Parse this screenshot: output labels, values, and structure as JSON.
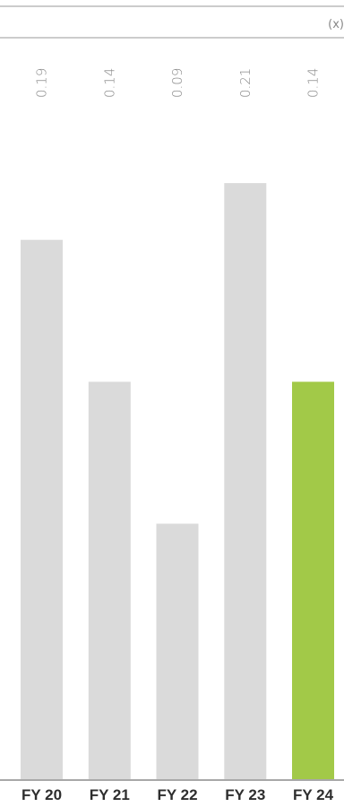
{
  "chart_data": {
    "type": "bar",
    "unit_label": "(x)",
    "categories": [
      "FY 20",
      "FY 21",
      "FY 22",
      "FY 23",
      "FY 24"
    ],
    "values": [
      0.19,
      0.14,
      0.09,
      0.21,
      0.14
    ],
    "value_labels": [
      "0.19",
      "0.14",
      "0.09",
      "0.21",
      "0.14"
    ],
    "ylim": [
      0,
      0.21
    ],
    "grid": false,
    "colors": {
      "default_bar": "#dadada",
      "highlight_bar": "#a2c948",
      "rule": "#9a9a9a",
      "baseline": "#8c8c8c"
    },
    "highlight_index": 4
  }
}
